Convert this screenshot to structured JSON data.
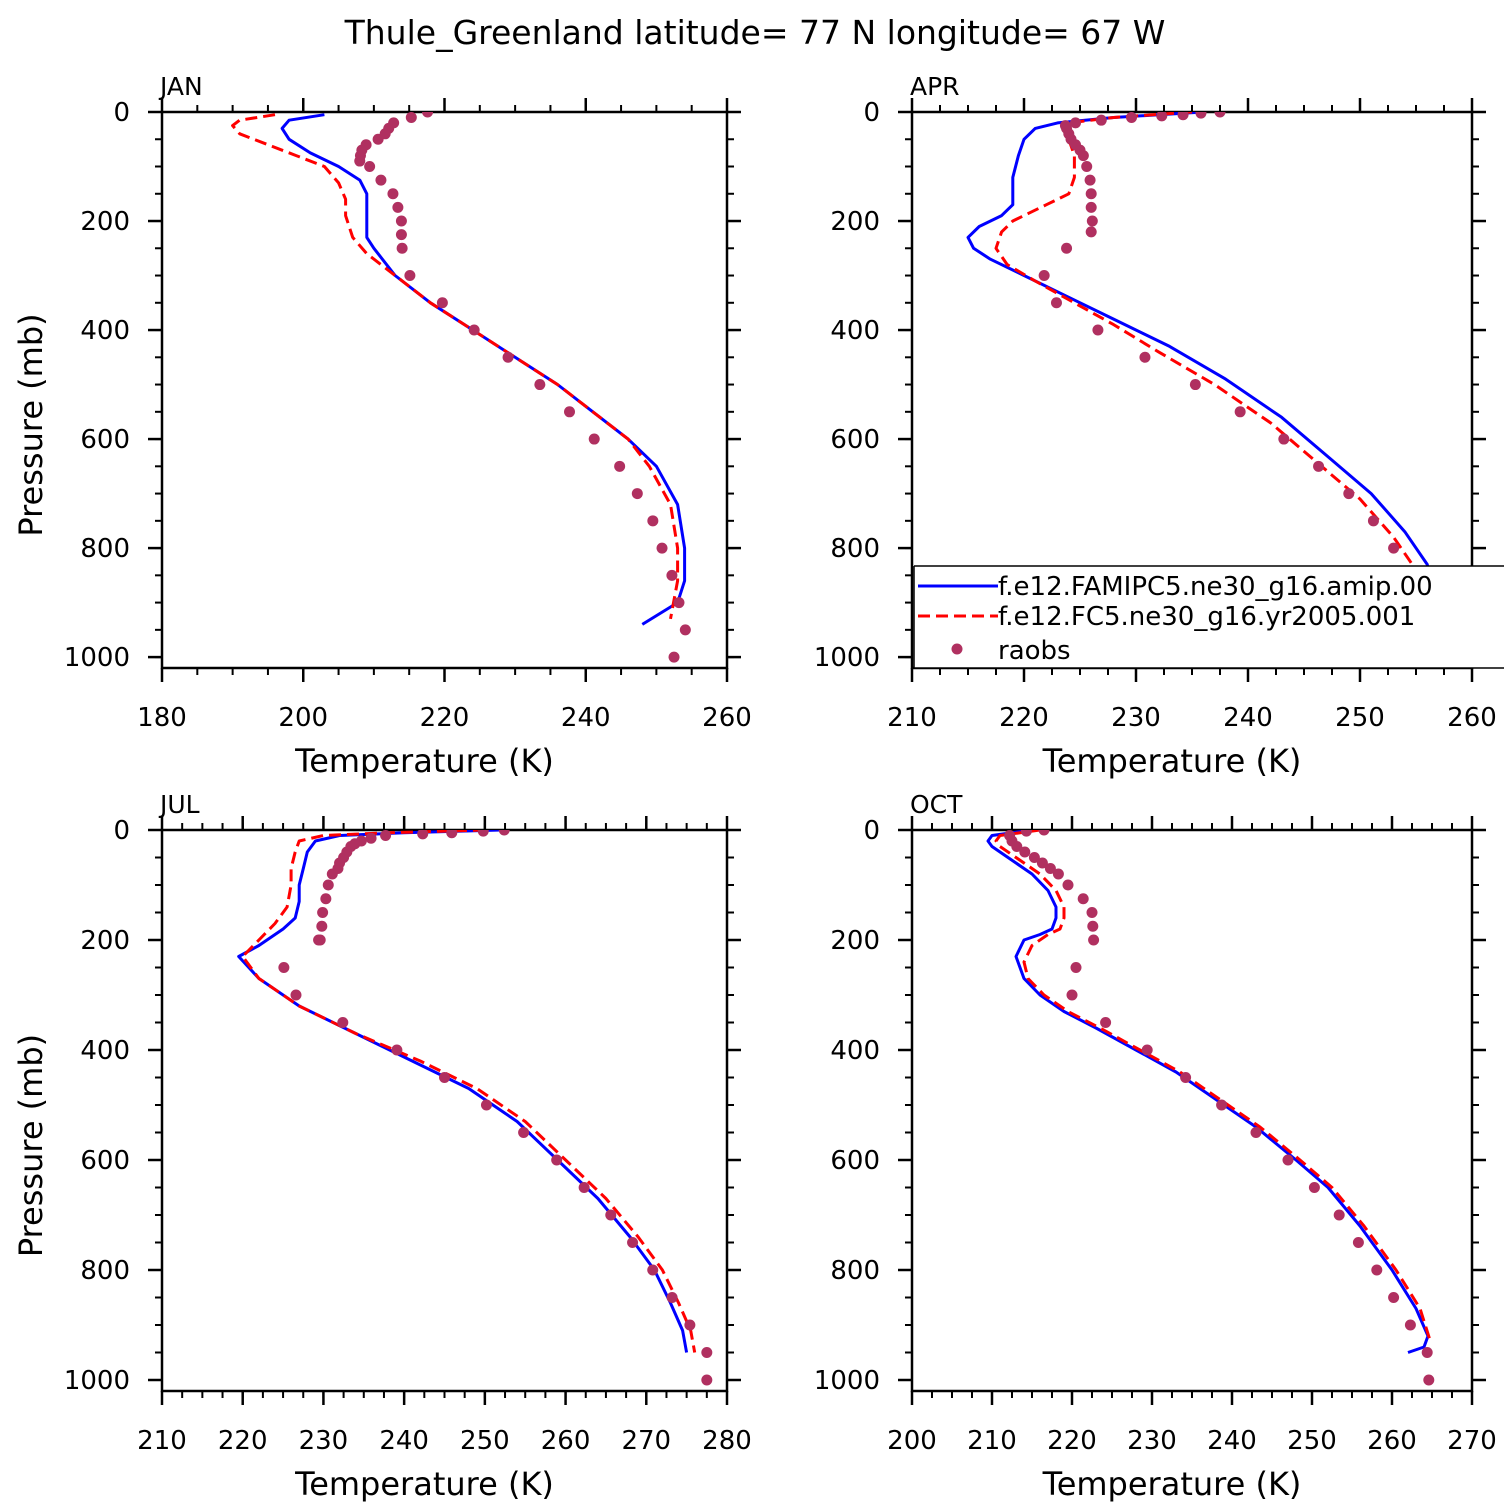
{
  "figure": {
    "title": "Thule_Greenland  latitude= 77 N longitude= 67 W"
  },
  "legend": {
    "entries": [
      {
        "label": "f.e12.FAMIPC5.ne30_g16.amip.00",
        "color": "#0000ff",
        "style": "solid"
      },
      {
        "label": "f.e12.FC5.ne30_g16.yr2005.001",
        "color": "#ff0000",
        "style": "dashed"
      },
      {
        "label": "raobs",
        "color": "#b03060",
        "style": "marker"
      }
    ]
  },
  "chart_data": [
    {
      "type": "line",
      "panel": "JAN",
      "xlabel": "Temperature (K)",
      "ylabel": "Pressure (mb)",
      "xlim": [
        180,
        260
      ],
      "ylim": [
        0,
        1020
      ],
      "y_inverted": true,
      "xticks": [
        180,
        200,
        220,
        240,
        260
      ],
      "yticks": [
        0,
        200,
        400,
        600,
        800,
        1000
      ],
      "series": [
        {
          "name": "f.e12.FAMIPC5.ne30_g16.amip.00",
          "color": "#0000ff",
          "style": "solid",
          "x": [
            203,
            198,
            197,
            198,
            201,
            205,
            208,
            209,
            209,
            209,
            209,
            210,
            213,
            218,
            224,
            230,
            236,
            241,
            246,
            250,
            253,
            254,
            254,
            253,
            248
          ],
          "y": [
            5,
            15,
            30,
            50,
            75,
            100,
            125,
            150,
            175,
            200,
            230,
            250,
            300,
            350,
            400,
            450,
            500,
            550,
            600,
            650,
            720,
            800,
            860,
            900,
            940
          ]
        },
        {
          "name": "f.e12.FC5.ne30_g16.yr2005.001",
          "color": "#ff0000",
          "style": "dashed",
          "x": [
            196,
            191,
            190,
            191,
            195,
            199,
            203,
            205,
            206,
            206,
            207,
            209,
            213,
            218,
            224,
            230,
            236,
            241,
            246,
            249,
            252,
            253,
            253,
            252
          ],
          "y": [
            5,
            15,
            25,
            40,
            60,
            80,
            100,
            130,
            160,
            190,
            230,
            260,
            300,
            350,
            400,
            450,
            500,
            550,
            600,
            650,
            720,
            800,
            860,
            930
          ]
        },
        {
          "name": "raobs",
          "color": "#b03060",
          "style": "marker",
          "x": [
            217.6,
            215.3,
            212.8,
            212.1,
            211.6,
            210.6,
            208.9,
            208.3,
            208.1,
            208.0,
            209.4,
            211.0,
            212.7,
            213.4,
            213.9,
            213.9,
            214.0,
            215.1,
            219.7,
            224.2,
            229.0,
            233.5,
            237.7,
            241.2,
            244.8,
            247.3,
            249.5,
            250.8,
            252.2,
            253.2,
            254.1,
            252.5
          ],
          "y": [
            0,
            10,
            20,
            30,
            40,
            50,
            60,
            70,
            80,
            90,
            100,
            125,
            150,
            175,
            200,
            225,
            250,
            300,
            350,
            400,
            450,
            500,
            550,
            600,
            650,
            700,
            750,
            800,
            850,
            900,
            950,
            1000
          ]
        }
      ]
    },
    {
      "type": "line",
      "panel": "APR",
      "xlabel": "Temperature (K)",
      "ylabel": "",
      "xlim": [
        210,
        260
      ],
      "ylim": [
        0,
        1020
      ],
      "y_inverted": true,
      "xticks": [
        210,
        220,
        230,
        240,
        250,
        260
      ],
      "yticks": [
        0,
        200,
        400,
        600,
        800,
        1000
      ],
      "series": [
        {
          "name": "f.e12.FAMIPC5.ne30_g16.amip.00",
          "color": "#0000ff",
          "style": "solid",
          "x": [
            236,
            228,
            223,
            221,
            220,
            219.5,
            219,
            219,
            218,
            216,
            215,
            215.5,
            217,
            220,
            224,
            228,
            233,
            238,
            243,
            247,
            251,
            254,
            256,
            256.5,
            256,
            253
          ],
          "y": [
            0,
            10,
            20,
            30,
            50,
            80,
            120,
            170,
            190,
            210,
            230,
            250,
            270,
            300,
            340,
            380,
            430,
            490,
            560,
            630,
            700,
            770,
            830,
            870,
            910,
            950
          ]
        },
        {
          "name": "f.e12.FC5.ne30_g16.yr2005.001",
          "color": "#ff0000",
          "style": "dashed",
          "x": [
            235,
            228,
            224,
            223.5,
            224,
            224.5,
            224.5,
            224,
            222,
            219,
            218,
            217.5,
            218.5,
            221,
            224.5,
            228,
            232,
            237,
            242,
            246,
            250,
            253,
            255,
            256,
            256
          ],
          "y": [
            0,
            10,
            20,
            30,
            50,
            80,
            120,
            150,
            170,
            200,
            220,
            250,
            280,
            310,
            350,
            390,
            440,
            500,
            570,
            640,
            710,
            780,
            840,
            900,
            940
          ]
        },
        {
          "name": "raobs",
          "color": "#b03060",
          "style": "marker",
          "x": [
            237.5,
            235.8,
            234.2,
            232.3,
            229.6,
            226.9,
            224.6,
            223.7,
            223.8,
            224.0,
            224.2,
            224.6,
            225.0,
            225.3,
            225.6,
            225.9,
            226.0,
            226.0,
            226.1,
            226.0,
            223.8,
            221.8,
            222.9,
            226.6,
            230.8,
            235.3,
            239.3,
            243.2,
            246.3,
            249.0,
            251.2,
            253.0,
            254.4,
            256.1,
            257.1,
            257.2
          ],
          "y": [
            0,
            2,
            5,
            7,
            10,
            15,
            20,
            25,
            30,
            40,
            50,
            60,
            70,
            80,
            100,
            125,
            150,
            175,
            200,
            220,
            250,
            300,
            350,
            400,
            450,
            500,
            550,
            600,
            650,
            700,
            750,
            800,
            850,
            900,
            950,
            1000
          ]
        }
      ]
    },
    {
      "type": "line",
      "panel": "JUL",
      "xlabel": "Temperature (K)",
      "ylabel": "Pressure (mb)",
      "xlim": [
        210,
        280
      ],
      "ylim": [
        0,
        1020
      ],
      "y_inverted": true,
      "xticks": [
        210,
        220,
        230,
        240,
        250,
        260,
        270,
        280
      ],
      "yticks": [
        0,
        200,
        400,
        600,
        800,
        1000
      ],
      "series": [
        {
          "name": "f.e12.FAMIPC5.ne30_g16.amip.00",
          "color": "#0000ff",
          "style": "solid",
          "x": [
            252,
            240,
            232,
            229,
            228,
            227.5,
            227,
            227,
            226.5,
            225,
            222,
            219.5,
            222,
            227,
            234,
            241,
            248,
            254,
            259,
            264,
            268,
            271,
            273,
            274.5,
            275
          ],
          "y": [
            0,
            5,
            10,
            20,
            40,
            70,
            100,
            130,
            160,
            180,
            210,
            230,
            270,
            320,
            370,
            420,
            470,
            530,
            600,
            670,
            740,
            800,
            860,
            910,
            950
          ]
        },
        {
          "name": "f.e12.FC5.ne30_g16.yr2005.001",
          "color": "#ff0000",
          "style": "dashed",
          "x": [
            250,
            238,
            230,
            227,
            226.5,
            226,
            226,
            225.5,
            224,
            222,
            220,
            222,
            227,
            234,
            242,
            249,
            255,
            260,
            265,
            269,
            272,
            274,
            275.5,
            276
          ],
          "y": [
            0,
            5,
            10,
            20,
            40,
            70,
            100,
            140,
            170,
            200,
            230,
            270,
            320,
            370,
            420,
            470,
            530,
            600,
            670,
            740,
            800,
            860,
            910,
            950
          ]
        },
        {
          "name": "raobs",
          "color": "#b03060",
          "style": "marker",
          "x": [
            252.4,
            249.8,
            245.9,
            242.3,
            237.7,
            235.9,
            234.7,
            233.9,
            233.4,
            232.9,
            232.5,
            232.0,
            231.8,
            231.1,
            230.6,
            230.3,
            229.9,
            229.8,
            229.6,
            229.4,
            225.1,
            226.6,
            232.4,
            239.1,
            245.0,
            250.2,
            254.8,
            258.9,
            262.3,
            265.6,
            268.3,
            270.8,
            273.2,
            275.4,
            277.5,
            277.5
          ],
          "y": [
            0,
            2,
            5,
            7,
            10,
            15,
            20,
            25,
            30,
            40,
            50,
            60,
            70,
            80,
            100,
            125,
            150,
            175,
            200,
            200,
            250,
            300,
            350,
            400,
            450,
            500,
            550,
            600,
            650,
            700,
            750,
            800,
            850,
            900,
            950,
            1000
          ]
        }
      ]
    },
    {
      "type": "line",
      "panel": "OCT",
      "xlabel": "Temperature (K)",
      "ylabel": "",
      "xlim": [
        200,
        270
      ],
      "ylim": [
        0,
        1020
      ],
      "y_inverted": true,
      "xticks": [
        200,
        210,
        220,
        230,
        240,
        250,
        260,
        270
      ],
      "yticks": [
        0,
        200,
        400,
        600,
        800,
        1000
      ],
      "series": [
        {
          "name": "f.e12.FAMIPC5.ne30_g16.amip.00",
          "color": "#0000ff",
          "style": "solid",
          "x": [
            215,
            210,
            209.5,
            210,
            212,
            215,
            217,
            218,
            218,
            217.5,
            216,
            214,
            213,
            214,
            216,
            219,
            223,
            228,
            233,
            238,
            243,
            248,
            252,
            256,
            260,
            263,
            264.5,
            264,
            262
          ],
          "y": [
            0,
            10,
            20,
            30,
            50,
            80,
            110,
            140,
            160,
            180,
            190,
            200,
            230,
            270,
            300,
            330,
            360,
            400,
            440,
            490,
            540,
            600,
            650,
            720,
            800,
            870,
            920,
            940,
            950
          ]
        },
        {
          "name": "f.e12.FC5.ne30_g16.yr2005.001",
          "color": "#ff0000",
          "style": "dashed",
          "x": [
            216,
            211,
            210.5,
            211,
            213,
            216,
            218,
            219,
            219,
            218.5,
            217,
            215,
            214,
            214.5,
            216.5,
            219.5,
            223.5,
            228.5,
            233.5,
            238.5,
            243.5,
            248.5,
            252.5,
            256.5,
            260.5,
            263.5,
            264.8
          ],
          "y": [
            0,
            10,
            20,
            30,
            50,
            80,
            110,
            140,
            160,
            180,
            190,
            210,
            240,
            270,
            300,
            330,
            360,
            400,
            440,
            490,
            540,
            600,
            650,
            720,
            800,
            870,
            930
          ]
        },
        {
          "name": "raobs",
          "color": "#b03060",
          "style": "marker",
          "x": [
            216.5,
            214.3,
            212.2,
            212.5,
            213.1,
            214.1,
            215.3,
            216.3,
            217.3,
            218.3,
            219.5,
            221.4,
            222.5,
            222.6,
            222.7,
            220.5,
            220.0,
            224.2,
            229.4,
            234.2,
            238.7,
            243.0,
            247.0,
            250.3,
            253.4,
            255.8,
            258.1,
            260.2,
            262.3,
            264.4,
            264.6
          ],
          "y": [
            0,
            2,
            10,
            20,
            30,
            40,
            50,
            60,
            70,
            80,
            100,
            125,
            150,
            175,
            200,
            250,
            300,
            350,
            400,
            450,
            500,
            550,
            600,
            650,
            700,
            750,
            800,
            850,
            900,
            950,
            1000
          ]
        }
      ]
    }
  ]
}
